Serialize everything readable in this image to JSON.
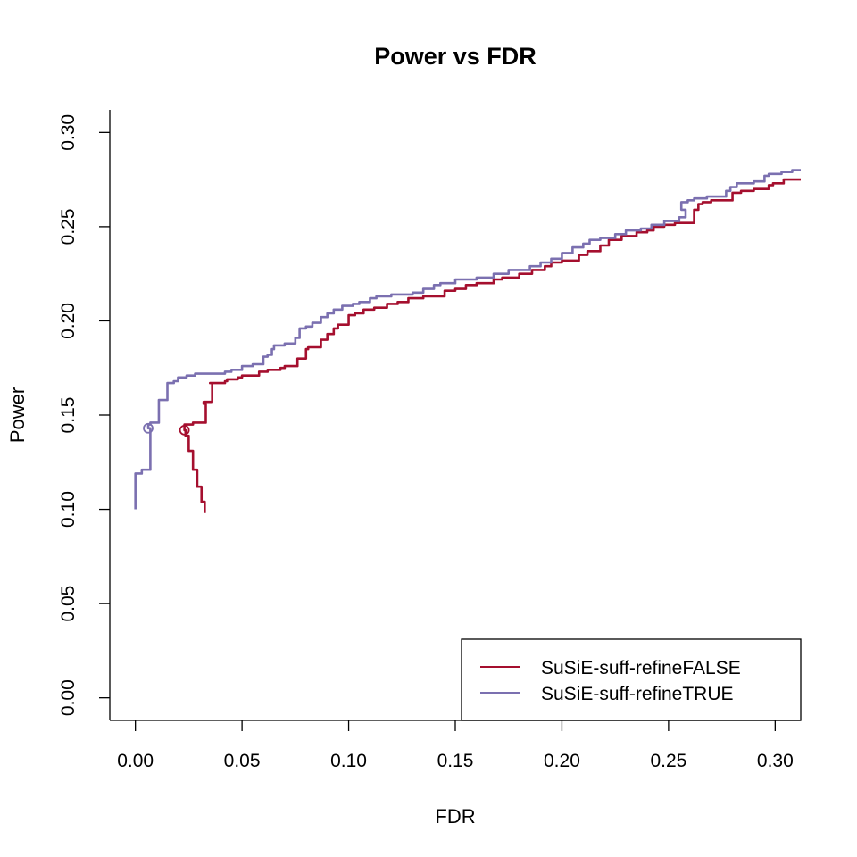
{
  "chart_data": {
    "type": "line",
    "title": "Power vs FDR",
    "xlabel": "FDR",
    "ylabel": "Power",
    "xlim": [
      -0.012,
      0.312
    ],
    "ylim": [
      -0.012,
      0.312
    ],
    "xticks": [
      0.0,
      0.05,
      0.1,
      0.15,
      0.2,
      0.25,
      0.3
    ],
    "xtick_labels": [
      "0.00",
      "0.05",
      "0.10",
      "0.15",
      "0.20",
      "0.25",
      "0.30"
    ],
    "yticks": [
      0.0,
      0.05,
      0.1,
      0.15,
      0.2,
      0.25,
      0.3
    ],
    "ytick_labels": [
      "0.00",
      "0.05",
      "0.10",
      "0.15",
      "0.20",
      "0.25",
      "0.30"
    ],
    "grid": false,
    "legend_position": "bottom-right",
    "series": [
      {
        "name": "SuSiE-suff-refineFALSE",
        "color": "#a50f2e",
        "marker": {
          "x": 0.023,
          "y": 0.142
        },
        "points": [
          [
            0.0325,
            0.098
          ],
          [
            0.031,
            0.104
          ],
          [
            0.029,
            0.112
          ],
          [
            0.027,
            0.121
          ],
          [
            0.025,
            0.131
          ],
          [
            0.0235,
            0.139
          ],
          [
            0.023,
            0.142
          ],
          [
            0.027,
            0.145
          ],
          [
            0.033,
            0.146
          ],
          [
            0.032,
            0.156
          ],
          [
            0.036,
            0.157
          ],
          [
            0.035,
            0.167
          ],
          [
            0.042,
            0.167
          ],
          [
            0.043,
            0.168
          ],
          [
            0.048,
            0.169
          ],
          [
            0.05,
            0.17
          ],
          [
            0.058,
            0.171
          ],
          [
            0.062,
            0.173
          ],
          [
            0.068,
            0.174
          ],
          [
            0.07,
            0.175
          ],
          [
            0.076,
            0.176
          ],
          [
            0.078,
            0.18
          ],
          [
            0.08,
            0.18
          ],
          [
            0.081,
            0.185
          ],
          [
            0.087,
            0.186
          ],
          [
            0.09,
            0.19
          ],
          [
            0.093,
            0.193
          ],
          [
            0.095,
            0.196
          ],
          [
            0.1,
            0.198
          ],
          [
            0.103,
            0.203
          ],
          [
            0.107,
            0.204
          ],
          [
            0.112,
            0.206
          ],
          [
            0.118,
            0.207
          ],
          [
            0.123,
            0.209
          ],
          [
            0.128,
            0.21
          ],
          [
            0.135,
            0.212
          ],
          [
            0.145,
            0.213
          ],
          [
            0.15,
            0.216
          ],
          [
            0.155,
            0.217
          ],
          [
            0.16,
            0.219
          ],
          [
            0.168,
            0.22
          ],
          [
            0.172,
            0.222
          ],
          [
            0.18,
            0.223
          ],
          [
            0.186,
            0.225
          ],
          [
            0.192,
            0.227
          ],
          [
            0.195,
            0.229
          ],
          [
            0.2,
            0.231
          ],
          [
            0.208,
            0.232
          ],
          [
            0.212,
            0.235
          ],
          [
            0.218,
            0.237
          ],
          [
            0.222,
            0.24
          ],
          [
            0.228,
            0.243
          ],
          [
            0.235,
            0.245
          ],
          [
            0.24,
            0.247
          ],
          [
            0.243,
            0.248
          ],
          [
            0.248,
            0.25
          ],
          [
            0.253,
            0.251
          ],
          [
            0.262,
            0.252
          ],
          [
            0.264,
            0.259
          ],
          [
            0.266,
            0.262
          ],
          [
            0.27,
            0.263
          ],
          [
            0.28,
            0.264
          ],
          [
            0.284,
            0.268
          ],
          [
            0.29,
            0.269
          ],
          [
            0.297,
            0.27
          ],
          [
            0.299,
            0.272
          ],
          [
            0.304,
            0.273
          ],
          [
            0.306,
            0.275
          ],
          [
            0.312,
            0.275
          ]
        ]
      },
      {
        "name": "SuSiE-suff-refineTRUE",
        "color": "#7b70b0",
        "marker": {
          "x": 0.006,
          "y": 0.143
        },
        "points": [
          [
            0.0,
            0.1
          ],
          [
            0.0,
            0.118
          ],
          [
            0.003,
            0.119
          ],
          [
            0.007,
            0.121
          ],
          [
            0.006,
            0.143
          ],
          [
            0.007,
            0.145
          ],
          [
            0.011,
            0.146
          ],
          [
            0.011,
            0.157
          ],
          [
            0.015,
            0.158
          ],
          [
            0.015,
            0.167
          ],
          [
            0.018,
            0.167
          ],
          [
            0.02,
            0.168
          ],
          [
            0.024,
            0.17
          ],
          [
            0.028,
            0.171
          ],
          [
            0.032,
            0.172
          ],
          [
            0.042,
            0.172
          ],
          [
            0.045,
            0.173
          ],
          [
            0.05,
            0.174
          ],
          [
            0.055,
            0.176
          ],
          [
            0.06,
            0.177
          ],
          [
            0.062,
            0.181
          ],
          [
            0.064,
            0.182
          ],
          [
            0.065,
            0.185
          ],
          [
            0.07,
            0.187
          ],
          [
            0.075,
            0.188
          ],
          [
            0.077,
            0.191
          ],
          [
            0.08,
            0.196
          ],
          [
            0.083,
            0.197
          ],
          [
            0.087,
            0.199
          ],
          [
            0.09,
            0.202
          ],
          [
            0.093,
            0.204
          ],
          [
            0.097,
            0.206
          ],
          [
            0.102,
            0.208
          ],
          [
            0.105,
            0.209
          ],
          [
            0.11,
            0.21
          ],
          [
            0.113,
            0.212
          ],
          [
            0.12,
            0.213
          ],
          [
            0.13,
            0.214
          ],
          [
            0.135,
            0.215
          ],
          [
            0.14,
            0.217
          ],
          [
            0.143,
            0.219
          ],
          [
            0.15,
            0.22
          ],
          [
            0.16,
            0.222
          ],
          [
            0.168,
            0.223
          ],
          [
            0.175,
            0.225
          ],
          [
            0.185,
            0.227
          ],
          [
            0.19,
            0.229
          ],
          [
            0.195,
            0.231
          ],
          [
            0.2,
            0.233
          ],
          [
            0.205,
            0.236
          ],
          [
            0.21,
            0.239
          ],
          [
            0.213,
            0.241
          ],
          [
            0.218,
            0.243
          ],
          [
            0.225,
            0.244
          ],
          [
            0.23,
            0.246
          ],
          [
            0.237,
            0.248
          ],
          [
            0.242,
            0.249
          ],
          [
            0.248,
            0.251
          ],
          [
            0.255,
            0.253
          ],
          [
            0.258,
            0.255
          ],
          [
            0.256,
            0.259
          ],
          [
            0.259,
            0.263
          ],
          [
            0.262,
            0.264
          ],
          [
            0.268,
            0.265
          ],
          [
            0.277,
            0.266
          ],
          [
            0.279,
            0.269
          ],
          [
            0.282,
            0.271
          ],
          [
            0.29,
            0.273
          ],
          [
            0.295,
            0.274
          ],
          [
            0.297,
            0.277
          ],
          [
            0.303,
            0.278
          ],
          [
            0.308,
            0.279
          ],
          [
            0.312,
            0.28
          ]
        ]
      }
    ]
  }
}
